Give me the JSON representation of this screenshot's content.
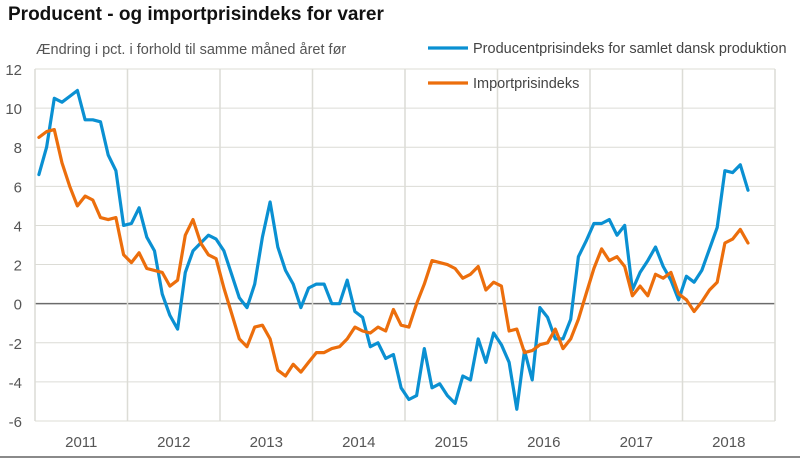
{
  "title": "Producent - og importprisindeks for varer",
  "chart_data": {
    "type": "line",
    "title": "Producent - og importprisindeks for varer",
    "ylabel": "Ændring i pct. i forhold til samme måned året før",
    "xlabel": "",
    "frequency": "monthly",
    "x_range": [
      "2011-01",
      "2018-09"
    ],
    "x_tick_labels": [
      "2011",
      "2012",
      "2013",
      "2014",
      "2015",
      "2016",
      "2017",
      "2018"
    ],
    "ylim": [
      -6,
      12
    ],
    "y_ticks": [
      -6,
      -4,
      -2,
      0,
      2,
      4,
      6,
      8,
      10,
      12
    ],
    "grid": true,
    "legend": "top-right",
    "series": [
      {
        "name": "Producentprisindeks for samlet dansk produktion",
        "color": "#0a90d2",
        "values": [
          6.6,
          8.0,
          10.5,
          10.3,
          10.6,
          10.9,
          9.4,
          9.4,
          9.3,
          7.6,
          6.8,
          4.0,
          4.1,
          4.9,
          3.4,
          2.7,
          0.5,
          -0.6,
          -1.3,
          1.6,
          2.7,
          3.1,
          3.5,
          3.3,
          2.7,
          1.5,
          0.3,
          -0.2,
          1.0,
          3.4,
          5.2,
          2.9,
          1.7,
          1.0,
          -0.2,
          0.8,
          1.0,
          1.0,
          0.0,
          0.0,
          1.2,
          -0.4,
          -0.7,
          -2.2,
          -2.0,
          -2.8,
          -2.6,
          -4.3,
          -4.9,
          -4.7,
          -2.3,
          -4.3,
          -4.1,
          -4.7,
          -5.1,
          -3.7,
          -3.9,
          -1.8,
          -3.0,
          -1.5,
          -2.1,
          -3.0,
          -5.4,
          -2.4,
          -3.9,
          -0.2,
          -0.7,
          -1.8,
          -1.8,
          -0.8,
          2.4,
          3.2,
          4.1,
          4.1,
          4.3,
          3.5,
          4.0,
          0.7,
          1.6,
          2.2,
          2.9,
          1.9,
          1.2,
          0.2,
          1.4,
          1.1,
          1.7,
          2.8,
          3.9,
          6.8,
          6.7,
          7.1,
          5.8
        ]
      },
      {
        "name": "Importprisindeks",
        "color": "#ec6e0c",
        "values": [
          8.5,
          8.8,
          8.9,
          7.2,
          6.0,
          5.0,
          5.5,
          5.3,
          4.4,
          4.3,
          4.4,
          2.5,
          2.1,
          2.6,
          1.8,
          1.7,
          1.6,
          0.9,
          1.2,
          3.5,
          4.3,
          3.1,
          2.5,
          2.3,
          0.8,
          -0.5,
          -1.8,
          -2.2,
          -1.2,
          -1.1,
          -1.8,
          -3.4,
          -3.7,
          -3.1,
          -3.5,
          -3.0,
          -2.5,
          -2.5,
          -2.3,
          -2.2,
          -1.8,
          -1.2,
          -1.4,
          -1.5,
          -1.2,
          -1.4,
          -0.3,
          -1.1,
          -1.2,
          0.0,
          1.0,
          2.2,
          2.1,
          2.0,
          1.8,
          1.3,
          1.5,
          1.9,
          0.7,
          1.1,
          0.9,
          -1.4,
          -1.3,
          -2.5,
          -2.4,
          -2.1,
          -2.0,
          -1.3,
          -2.3,
          -1.8,
          -0.8,
          0.5,
          1.8,
          2.8,
          2.2,
          2.4,
          1.9,
          0.4,
          0.9,
          0.4,
          1.5,
          1.3,
          1.6,
          0.5,
          0.2,
          -0.4,
          0.1,
          0.7,
          1.1,
          3.1,
          3.3,
          3.8,
          3.1
        ]
      }
    ]
  }
}
